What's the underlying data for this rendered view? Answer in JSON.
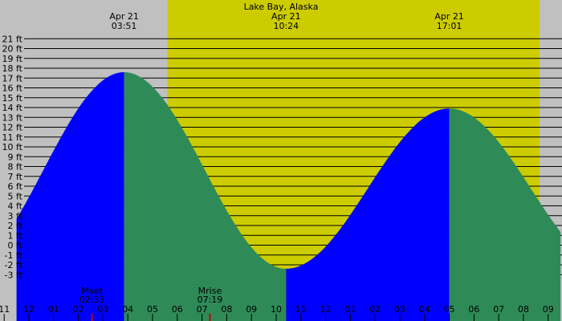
{
  "chart_data": {
    "type": "area",
    "title": "Lake Bay, Alaska",
    "xlabel": "",
    "ylabel": "",
    "x_unit": "hours (local time, Apr 21)",
    "xlim": [
      -0.5,
      21.5
    ],
    "ylim": [
      -4.0,
      21.5
    ],
    "grid": true,
    "y_ticks": [
      {
        "value": 21,
        "label": "21 ft"
      },
      {
        "value": 20,
        "label": "20 ft"
      },
      {
        "value": 19,
        "label": "19 ft"
      },
      {
        "value": 18,
        "label": "18 ft"
      },
      {
        "value": 17,
        "label": "17 ft"
      },
      {
        "value": 16,
        "label": "16 ft"
      },
      {
        "value": 15,
        "label": "15 ft"
      },
      {
        "value": 14,
        "label": "14 ft"
      },
      {
        "value": 13,
        "label": "13 ft"
      },
      {
        "value": 12,
        "label": "12 ft"
      },
      {
        "value": 11,
        "label": "11 ft"
      },
      {
        "value": 10,
        "label": "10 ft"
      },
      {
        "value": 9,
        "label": "9 ft"
      },
      {
        "value": 8,
        "label": "8 ft"
      },
      {
        "value": 7,
        "label": "7 ft"
      },
      {
        "value": 6,
        "label": "6 ft"
      },
      {
        "value": 5,
        "label": "5 ft"
      },
      {
        "value": 4,
        "label": "4 ft"
      },
      {
        "value": 3,
        "label": "3 ft"
      },
      {
        "value": 2,
        "label": "2 ft"
      },
      {
        "value": 1,
        "label": "1 ft"
      },
      {
        "value": 0,
        "label": "0 ft"
      },
      {
        "value": -1,
        "label": "-1 ft"
      },
      {
        "value": -2,
        "label": "-2 ft"
      },
      {
        "value": -3,
        "label": "-3 ft"
      }
    ],
    "x_ticks": [
      {
        "value": -1,
        "label": "11"
      },
      {
        "value": 0,
        "label": "12"
      },
      {
        "value": 1,
        "label": "01"
      },
      {
        "value": 2,
        "label": "02"
      },
      {
        "value": 3,
        "label": "03"
      },
      {
        "value": 4,
        "label": "04"
      },
      {
        "value": 5,
        "label": "05"
      },
      {
        "value": 6,
        "label": "06"
      },
      {
        "value": 7,
        "label": "07"
      },
      {
        "value": 8,
        "label": "08"
      },
      {
        "value": 9,
        "label": "09"
      },
      {
        "value": 10,
        "label": "10"
      },
      {
        "value": 11,
        "label": "11"
      },
      {
        "value": 12,
        "label": "12"
      },
      {
        "value": 13,
        "label": "01"
      },
      {
        "value": 14,
        "label": "02"
      },
      {
        "value": 15,
        "label": "03"
      },
      {
        "value": 16,
        "label": "04"
      },
      {
        "value": 17,
        "label": "05"
      },
      {
        "value": 18,
        "label": "06"
      },
      {
        "value": 19,
        "label": "07"
      },
      {
        "value": 20,
        "label": "08"
      },
      {
        "value": 21,
        "label": "09"
      }
    ],
    "extremes": [
      {
        "x": 3.85,
        "height": 17.6,
        "type": "high",
        "date": "Apr 21",
        "time": "03:51"
      },
      {
        "x": 10.4,
        "height": -2.4,
        "type": "low",
        "date": "Apr 21",
        "time": "10:24"
      },
      {
        "x": 17.0,
        "height": 13.9,
        "type": "high",
        "date": "Apr 21",
        "time": "17:01"
      }
    ],
    "daylight": {
      "start": 5.6,
      "end": 20.65
    },
    "moon_events": [
      {
        "label": "Mset",
        "time": "02:33",
        "x": 2.55
      },
      {
        "label": "Mrise",
        "time": "07:19",
        "x": 7.32
      }
    ],
    "colors": {
      "night": "#c0c0c0",
      "day": "#cccc00",
      "rising": "#0000ff",
      "falling": "#2e8b57"
    }
  }
}
